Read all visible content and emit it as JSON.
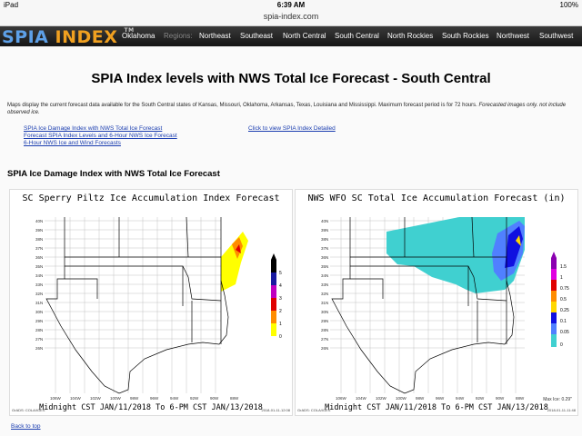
{
  "status": {
    "device": "iPad",
    "time": "6:39 AM",
    "battery": "100%"
  },
  "url": "spia-index.com",
  "nav": {
    "logo_a": "SPIA",
    "logo_b": "INDEX",
    "logo_tm": "TM",
    "items": [
      "Oklahoma",
      "Regions:",
      "Northeast",
      "Southeast",
      "North Central",
      "South Central",
      "North Rockies",
      "South Rockies",
      "Northwest",
      "Southwest"
    ]
  },
  "page": {
    "title": "SPIA Index levels with NWS Total Ice Forecast - South Central",
    "description": "Maps display the current forecast data available for the South Central states of Kansas, Missouri, Oklahoma, Arkansas, Texas, Louisiana and Mississippi. Maximum forecast period is for 72 hours.",
    "description_italic": "Forecasted images only. not include observed ice.",
    "links_left": [
      "SPIA Ice Damage Index with NWS Total Ice Forecast",
      "Forecast SPIA Index Levels and 6-Hour NWS Ice Forecast",
      "6-Hour NWS Ice and Wind Forecasts"
    ],
    "link_right": "Click to view SPIA Index Detailed",
    "section_title": "SPIA Ice Damage Index with NWS Total Ice Forecast",
    "back_to_top": "Back to top"
  },
  "maps": [
    {
      "title": "SC Sperry Piltz Ice Accumulation Index Forecast",
      "footer": "Midnight CST JAN/11/2018 To 6-PM CST JAN/13/2018",
      "credit": "GrADS: COLA/IGES",
      "stamp": "2018-01-11-12:08",
      "legend": [
        "5",
        "4",
        "3",
        "2",
        "1",
        "0"
      ],
      "legend_colors": [
        "#000000",
        "#1a1aa0",
        "#c000c0",
        "#e00000",
        "#ff8c00",
        "#ffff00"
      ],
      "lat_labels": [
        "40N",
        "39N",
        "38N",
        "37N",
        "36N",
        "35N",
        "34N",
        "33N",
        "32N",
        "31N",
        "30N",
        "29N",
        "28N",
        "27N",
        "26N"
      ],
      "lon_labels": [
        "106W",
        "104W",
        "102W",
        "100W",
        "98W",
        "96W",
        "94W",
        "92W",
        "90W",
        "88W"
      ]
    },
    {
      "title": "NWS WFO SC Total Ice Accumulation Forecast (in)",
      "footer": "Midnight CST JAN/11/2018 To 6-PM CST JAN/13/2018",
      "credit": "GrADS: COLA/IGES",
      "stamp": "2018-01-11-11:48",
      "max_ice": "Max Ice: 0.29\"",
      "legend": [
        "1.5",
        "1",
        "0.75",
        "0.5",
        "0.25",
        "0.1",
        "0.05",
        "0"
      ],
      "legend_colors": [
        "#8b00b0",
        "#e000e0",
        "#e00000",
        "#ff8c00",
        "#ffd700",
        "#1010e0",
        "#5080ff",
        "#40d0d0"
      ],
      "lat_labels": [
        "40N",
        "39N",
        "38N",
        "37N",
        "36N",
        "35N",
        "34N",
        "33N",
        "32N",
        "31N",
        "30N",
        "29N",
        "28N",
        "27N",
        "26N"
      ],
      "lon_labels": [
        "106W",
        "104W",
        "102W",
        "100W",
        "98W",
        "96W",
        "94W",
        "92W",
        "90W",
        "88W"
      ]
    }
  ]
}
